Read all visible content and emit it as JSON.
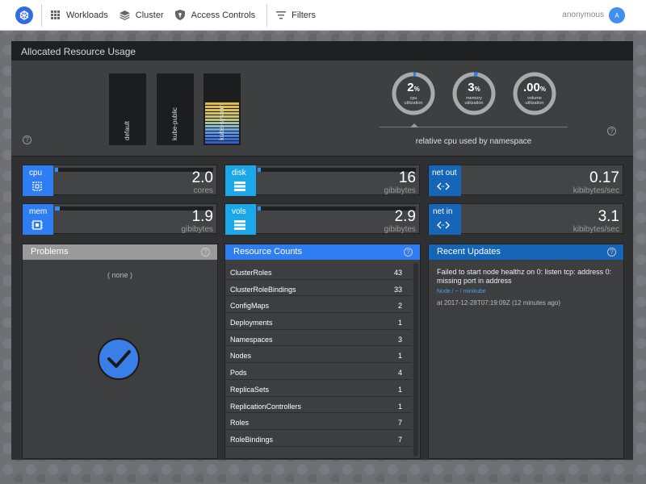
{
  "nav": {
    "items": [
      {
        "label": "Workloads",
        "icon": "grid-icon"
      },
      {
        "label": "Cluster",
        "icon": "layers-icon"
      },
      {
        "label": "Access Controls",
        "icon": "shield-icon"
      },
      {
        "label": "Filters",
        "icon": "filter-icon"
      }
    ],
    "user": "anonymous",
    "avatar_initial": "A"
  },
  "allocated": {
    "title": "Allocated Resource Usage",
    "namespaces": [
      {
        "name": "default",
        "segments": 0
      },
      {
        "name": "kube-public",
        "segments": 0
      },
      {
        "name": "kube-system",
        "segments": 13
      }
    ],
    "gauges": [
      {
        "value": "2",
        "suffix": "%",
        "label1": "cpu",
        "label2": "utilization",
        "fraction": 0.02
      },
      {
        "value": "3",
        "suffix": "%",
        "label1": "memory",
        "label2": "utilization",
        "fraction": 0.03
      },
      {
        "value": ".00",
        "suffix": "%",
        "label1": "volume",
        "label2": "utilization",
        "fraction": 0.0
      }
    ],
    "caption": "relative cpu used by namespace",
    "help": "?"
  },
  "metrics": [
    {
      "tag": "cpu",
      "value": "2.0",
      "unit": "cores",
      "fill": 0.02,
      "tag_color": "#2f7df2",
      "icon": "chip-icon"
    },
    {
      "tag": "disk",
      "value": "16",
      "unit": "gibibytes",
      "fill": 0.02,
      "tag_color": "#1aa8e8",
      "icon": "storage-icon"
    },
    {
      "tag": "net out",
      "value": "0.17",
      "unit": "kibibytes/sec",
      "fill": 0.0,
      "tag_color": "#1565b8",
      "icon": "network-icon"
    },
    {
      "tag": "mem",
      "value": "1.9",
      "unit": "gibibytes",
      "fill": 0.03,
      "tag_color": "#2f7df2",
      "icon": "memory-icon"
    },
    {
      "tag": "vols",
      "value": "2.9",
      "unit": "gibibytes",
      "fill": 0.02,
      "tag_color": "#1aa8e8",
      "icon": "storage-icon"
    },
    {
      "tag": "net in",
      "value": "3.1",
      "unit": "kibibytes/sec",
      "fill": 0.0,
      "tag_color": "#1565b8",
      "icon": "network-icon"
    }
  ],
  "problems": {
    "title": "Problems",
    "empty": "( none )",
    "help": "?"
  },
  "resources": {
    "title": "Resource Counts",
    "help": "?",
    "rows": [
      {
        "name": "ClusterRoles",
        "count": "43"
      },
      {
        "name": "ClusterRoleBindings",
        "count": "33"
      },
      {
        "name": "ConfigMaps",
        "count": "2"
      },
      {
        "name": "Deployments",
        "count": "1"
      },
      {
        "name": "Namespaces",
        "count": "3"
      },
      {
        "name": "Nodes",
        "count": "1"
      },
      {
        "name": "Pods",
        "count": "4"
      },
      {
        "name": "ReplicaSets",
        "count": "1"
      },
      {
        "name": "ReplicationControllers",
        "count": "1"
      },
      {
        "name": "Roles",
        "count": "7"
      },
      {
        "name": "RoleBindings",
        "count": "7"
      }
    ]
  },
  "updates": {
    "title": "Recent Updates",
    "help": "?",
    "items": [
      {
        "message": "Failed to start node healthz on 0: listen tcp: address 0: missing port in address",
        "link": "Node / ~ / minikube",
        "time": "at 2017-12-28T07:19:09Z (12 minutes ago)"
      }
    ]
  }
}
